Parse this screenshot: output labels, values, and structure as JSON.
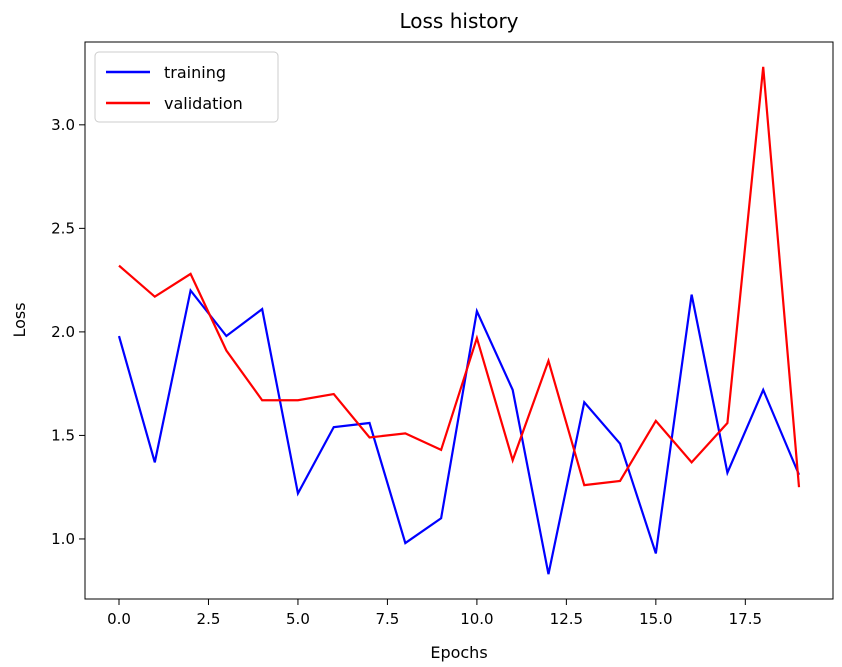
{
  "chart_data": {
    "type": "line",
    "title": "Loss history",
    "xlabel": "Epochs",
    "ylabel": "Loss",
    "xlim": [
      -0.95,
      19.95
    ],
    "ylim": [
      0.71,
      3.4
    ],
    "xticks": [
      0,
      2.5,
      5,
      7.5,
      10,
      12.5,
      15,
      17.5
    ],
    "xtick_labels": [
      "0.0",
      "2.5",
      "5.0",
      "7.5",
      "10.0",
      "12.5",
      "15.0",
      "17.5"
    ],
    "yticks": [
      1.0,
      1.5,
      2.0,
      2.5,
      3.0
    ],
    "ytick_labels": [
      "1.0",
      "1.5",
      "2.0",
      "2.5",
      "3.0"
    ],
    "grid": false,
    "legend_position": "top-left",
    "x": [
      0,
      1,
      2,
      3,
      4,
      5,
      6,
      7,
      8,
      9,
      10,
      11,
      12,
      13,
      14,
      15,
      16,
      17,
      18,
      19
    ],
    "series": [
      {
        "name": "training",
        "color": "#0000ff",
        "values": [
          1.98,
          1.37,
          2.2,
          1.98,
          2.11,
          1.22,
          1.54,
          1.56,
          0.98,
          1.1,
          2.1,
          1.72,
          0.83,
          1.66,
          1.46,
          0.93,
          2.18,
          1.32,
          1.72,
          1.31
        ]
      },
      {
        "name": "validation",
        "color": "#ff0000",
        "values": [
          2.32,
          2.17,
          2.28,
          1.91,
          1.67,
          1.67,
          1.7,
          1.49,
          1.51,
          1.43,
          1.97,
          1.38,
          1.86,
          1.26,
          1.28,
          1.57,
          1.37,
          1.56,
          3.28,
          1.25
        ]
      }
    ]
  }
}
